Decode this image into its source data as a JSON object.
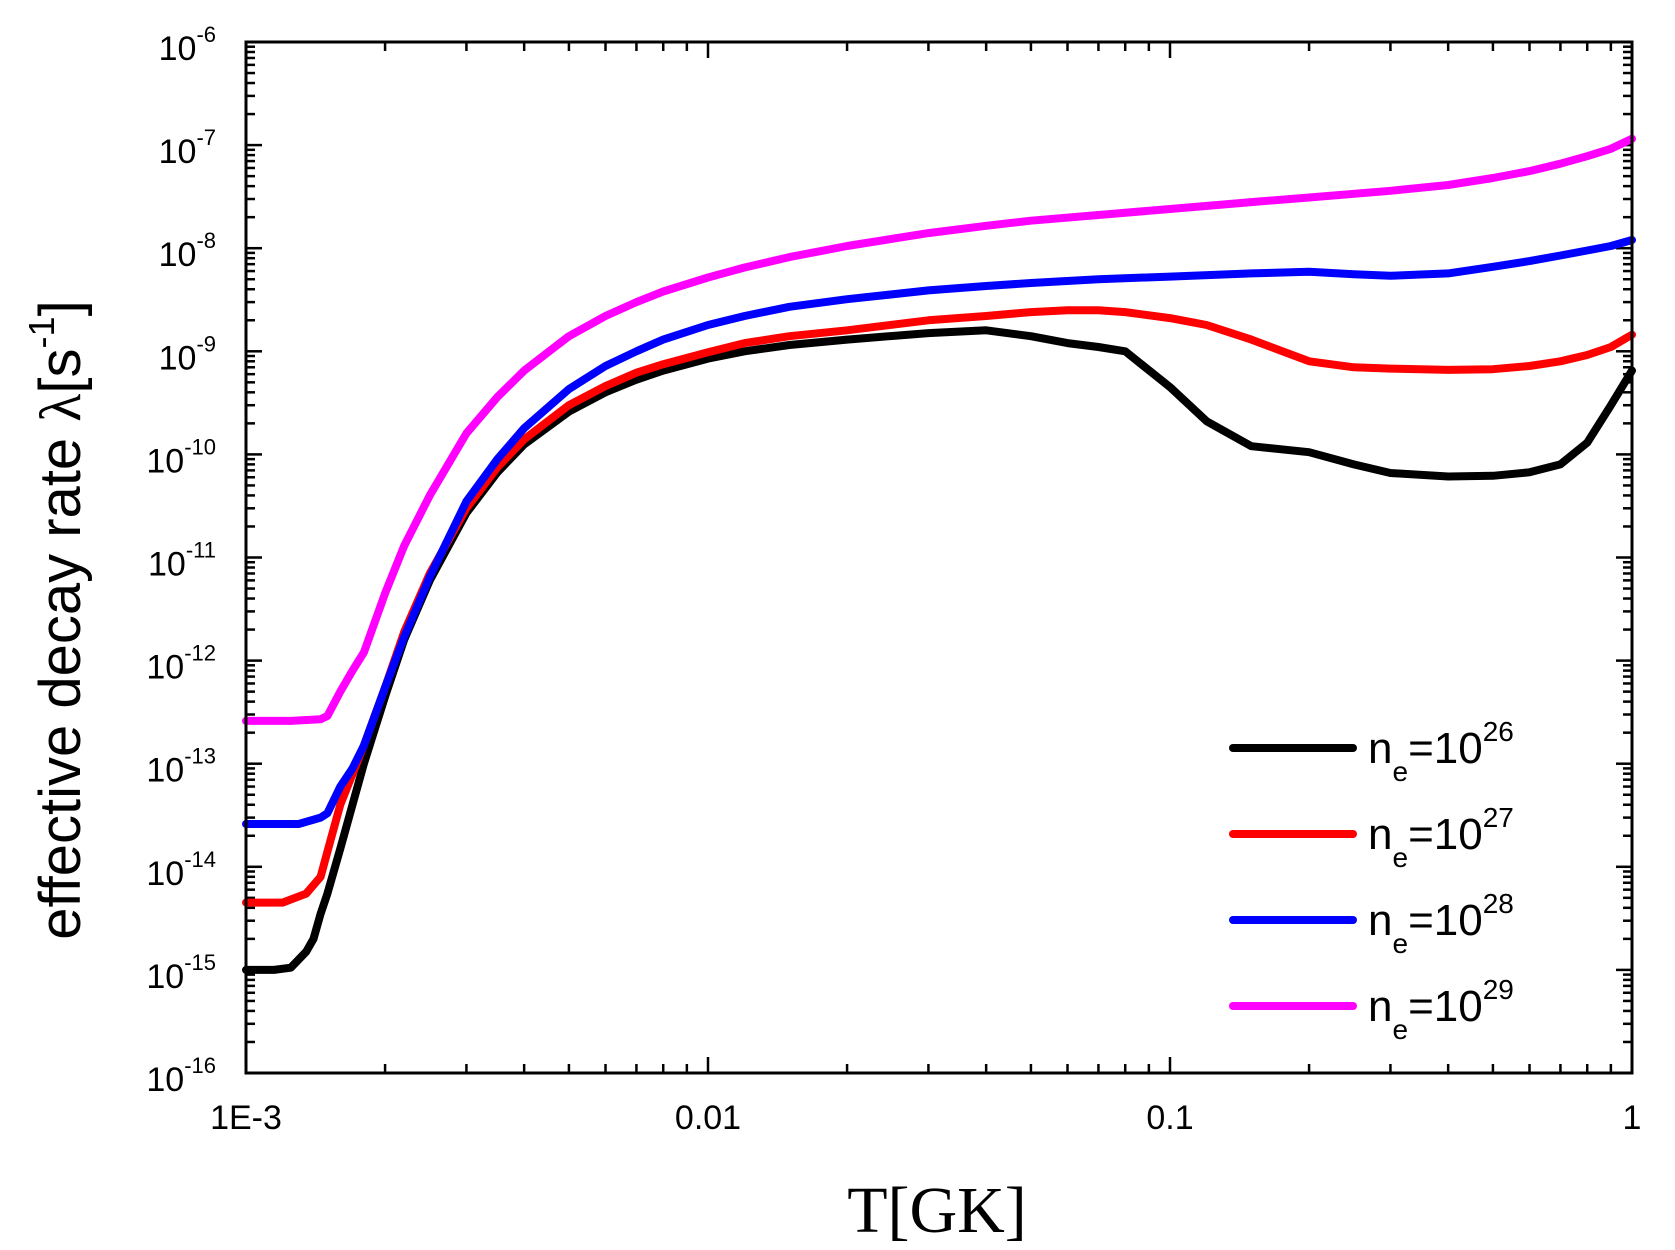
{
  "chart_data": {
    "type": "line",
    "xlabel": "T[GK]",
    "ylabel": {
      "prefix": "effective decay rate ",
      "symbol": "λ",
      "unit_open": "[s",
      "unit_exp": "-1",
      "unit_close": "]"
    },
    "x_scale": "log",
    "y_scale": "log",
    "xlim": [
      0.001,
      1
    ],
    "ylim": [
      1e-16,
      1e-06
    ],
    "x_ticks": [
      {
        "value": 0.001,
        "label": "1E-3"
      },
      {
        "value": 0.01,
        "label": "0.01"
      },
      {
        "value": 0.1,
        "label": "0.1"
      },
      {
        "value": 1,
        "label": "1"
      }
    ],
    "y_ticks": [
      {
        "value": 1e-06,
        "base": "10",
        "exp": "-6"
      },
      {
        "value": 1e-07,
        "base": "10",
        "exp": "-7"
      },
      {
        "value": 1e-08,
        "base": "10",
        "exp": "-8"
      },
      {
        "value": 1e-09,
        "base": "10",
        "exp": "-9"
      },
      {
        "value": 1e-10,
        "base": "10",
        "exp": "-10"
      },
      {
        "value": 1e-11,
        "base": "10",
        "exp": "-11"
      },
      {
        "value": 1e-12,
        "base": "10",
        "exp": "-12"
      },
      {
        "value": 1e-13,
        "base": "10",
        "exp": "-13"
      },
      {
        "value": 1e-14,
        "base": "10",
        "exp": "-14"
      },
      {
        "value": 1e-15,
        "base": "10",
        "exp": "-15"
      },
      {
        "value": 1e-16,
        "base": "10",
        "exp": "-16"
      }
    ],
    "grid": false,
    "legend_position": "bottom-right",
    "series": [
      {
        "legend": {
          "var": "n",
          "sub": "e",
          "eq": "=10",
          "sup": "26"
        },
        "color": "#000000",
        "points": [
          [
            0.001,
            1e-15
          ],
          [
            0.00115,
            1e-15
          ],
          [
            0.00125,
            1.05e-15
          ],
          [
            0.00135,
            1.5e-15
          ],
          [
            0.0014,
            2e-15
          ],
          [
            0.00145,
            3.5e-15
          ],
          [
            0.0015,
            5.5e-15
          ],
          [
            0.0016,
            1.5e-14
          ],
          [
            0.0017,
            4e-14
          ],
          [
            0.0018,
            1e-13
          ],
          [
            0.002,
            4.5e-13
          ],
          [
            0.0022,
            1.6e-12
          ],
          [
            0.0025,
            6e-12
          ],
          [
            0.003,
            2.7e-11
          ],
          [
            0.0035,
            6.7e-11
          ],
          [
            0.004,
            1.25e-10
          ],
          [
            0.005,
            2.6e-10
          ],
          [
            0.006,
            4e-10
          ],
          [
            0.007,
            5.3e-10
          ],
          [
            0.008,
            6.5e-10
          ],
          [
            0.01,
            8.5e-10
          ],
          [
            0.012,
            1e-09
          ],
          [
            0.015,
            1.15e-09
          ],
          [
            0.02,
            1.3e-09
          ],
          [
            0.03,
            1.5e-09
          ],
          [
            0.04,
            1.6e-09
          ],
          [
            0.05,
            1.4e-09
          ],
          [
            0.06,
            1.2e-09
          ],
          [
            0.07,
            1.1e-09
          ],
          [
            0.08,
            1e-09
          ],
          [
            0.1,
            4.5e-10
          ],
          [
            0.12,
            2.1e-10
          ],
          [
            0.15,
            1.2e-10
          ],
          [
            0.2,
            1.05e-10
          ],
          [
            0.25,
            8e-11
          ],
          [
            0.3,
            6.6e-11
          ],
          [
            0.4,
            6.1e-11
          ],
          [
            0.5,
            6.2e-11
          ],
          [
            0.6,
            6.7e-11
          ],
          [
            0.7,
            8e-11
          ],
          [
            0.8,
            1.3e-10
          ],
          [
            0.9,
            3e-10
          ],
          [
            1.0,
            6.5e-10
          ]
        ]
      },
      {
        "legend": {
          "var": "n",
          "sub": "e",
          "eq": "=10",
          "sup": "27"
        },
        "color": "#ff0000",
        "points": [
          [
            0.001,
            4.5e-15
          ],
          [
            0.0012,
            4.5e-15
          ],
          [
            0.00135,
            5.5e-15
          ],
          [
            0.00145,
            8e-15
          ],
          [
            0.0015,
            1.4e-14
          ],
          [
            0.0016,
            4e-14
          ],
          [
            0.0018,
            1.5e-13
          ],
          [
            0.002,
            5.5e-13
          ],
          [
            0.0022,
            1.9e-12
          ],
          [
            0.0025,
            7e-12
          ],
          [
            0.003,
            3e-11
          ],
          [
            0.0035,
            7.5e-11
          ],
          [
            0.004,
            1.4e-10
          ],
          [
            0.005,
            3e-10
          ],
          [
            0.006,
            4.6e-10
          ],
          [
            0.007,
            6.2e-10
          ],
          [
            0.008,
            7.5e-10
          ],
          [
            0.01,
            9.8e-10
          ],
          [
            0.012,
            1.2e-09
          ],
          [
            0.015,
            1.4e-09
          ],
          [
            0.02,
            1.6e-09
          ],
          [
            0.03,
            2e-09
          ],
          [
            0.04,
            2.2e-09
          ],
          [
            0.05,
            2.4e-09
          ],
          [
            0.06,
            2.5e-09
          ],
          [
            0.07,
            2.5e-09
          ],
          [
            0.08,
            2.4e-09
          ],
          [
            0.1,
            2.1e-09
          ],
          [
            0.12,
            1.8e-09
          ],
          [
            0.15,
            1.3e-09
          ],
          [
            0.2,
            8e-10
          ],
          [
            0.25,
            7e-10
          ],
          [
            0.3,
            6.8e-10
          ],
          [
            0.4,
            6.6e-10
          ],
          [
            0.5,
            6.7e-10
          ],
          [
            0.6,
            7.2e-10
          ],
          [
            0.7,
            8e-10
          ],
          [
            0.8,
            9.2e-10
          ],
          [
            0.9,
            1.1e-09
          ],
          [
            1.0,
            1.45e-09
          ]
        ]
      },
      {
        "legend": {
          "var": "n",
          "sub": "e",
          "eq": "=10",
          "sup": "28"
        },
        "color": "#0000ff",
        "points": [
          [
            0.001,
            2.6e-14
          ],
          [
            0.0013,
            2.6e-14
          ],
          [
            0.00145,
            3e-14
          ],
          [
            0.0015,
            3.3e-14
          ],
          [
            0.0016,
            6e-14
          ],
          [
            0.0017,
            9e-14
          ],
          [
            0.0018,
            1.5e-13
          ],
          [
            0.002,
            5.5e-13
          ],
          [
            0.0022,
            1.7e-12
          ],
          [
            0.0025,
            6.5e-12
          ],
          [
            0.003,
            3.5e-11
          ],
          [
            0.0035,
            9e-11
          ],
          [
            0.004,
            1.8e-10
          ],
          [
            0.005,
            4.3e-10
          ],
          [
            0.006,
            7.2e-10
          ],
          [
            0.007,
            1e-09
          ],
          [
            0.008,
            1.3e-09
          ],
          [
            0.01,
            1.8e-09
          ],
          [
            0.012,
            2.2e-09
          ],
          [
            0.015,
            2.7e-09
          ],
          [
            0.02,
            3.2e-09
          ],
          [
            0.03,
            3.9e-09
          ],
          [
            0.04,
            4.3e-09
          ],
          [
            0.05,
            4.6e-09
          ],
          [
            0.07,
            5e-09
          ],
          [
            0.1,
            5.3e-09
          ],
          [
            0.15,
            5.7e-09
          ],
          [
            0.2,
            5.9e-09
          ],
          [
            0.25,
            5.6e-09
          ],
          [
            0.3,
            5.4e-09
          ],
          [
            0.4,
            5.7e-09
          ],
          [
            0.5,
            6.6e-09
          ],
          [
            0.6,
            7.5e-09
          ],
          [
            0.7,
            8.5e-09
          ],
          [
            0.8,
            9.5e-09
          ],
          [
            0.9,
            1.05e-08
          ],
          [
            1.0,
            1.2e-08
          ]
        ]
      },
      {
        "legend": {
          "var": "n",
          "sub": "e",
          "eq": "=10",
          "sup": "29"
        },
        "color": "#ff00ff",
        "points": [
          [
            0.001,
            2.6e-13
          ],
          [
            0.00125,
            2.6e-13
          ],
          [
            0.00145,
            2.7e-13
          ],
          [
            0.0015,
            2.9e-13
          ],
          [
            0.0016,
            5e-13
          ],
          [
            0.0017,
            8e-13
          ],
          [
            0.0018,
            1.2e-12
          ],
          [
            0.002,
            4.5e-12
          ],
          [
            0.0022,
            1.3e-11
          ],
          [
            0.0025,
            4e-11
          ],
          [
            0.003,
            1.6e-10
          ],
          [
            0.0035,
            3.6e-10
          ],
          [
            0.004,
            6.5e-10
          ],
          [
            0.005,
            1.4e-09
          ],
          [
            0.006,
            2.2e-09
          ],
          [
            0.007,
            3e-09
          ],
          [
            0.008,
            3.8e-09
          ],
          [
            0.01,
            5.2e-09
          ],
          [
            0.012,
            6.5e-09
          ],
          [
            0.015,
            8.2e-09
          ],
          [
            0.02,
            1.05e-08
          ],
          [
            0.03,
            1.4e-08
          ],
          [
            0.04,
            1.65e-08
          ],
          [
            0.05,
            1.85e-08
          ],
          [
            0.07,
            2.1e-08
          ],
          [
            0.1,
            2.4e-08
          ],
          [
            0.15,
            2.8e-08
          ],
          [
            0.2,
            3.1e-08
          ],
          [
            0.3,
            3.6e-08
          ],
          [
            0.4,
            4.1e-08
          ],
          [
            0.5,
            4.8e-08
          ],
          [
            0.6,
            5.6e-08
          ],
          [
            0.7,
            6.6e-08
          ],
          [
            0.8,
            7.8e-08
          ],
          [
            0.9,
            9.2e-08
          ],
          [
            1.0,
            1.15e-07
          ]
        ]
      }
    ]
  }
}
